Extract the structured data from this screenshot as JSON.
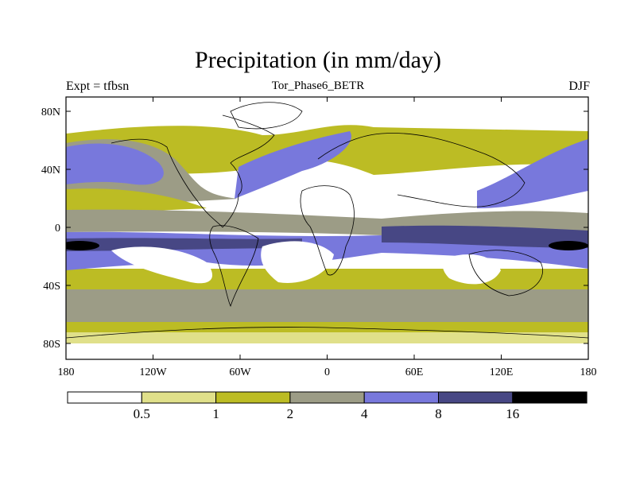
{
  "title": "Precipitation (in mm/day)",
  "subtitle": "Tor_Phase6_BETR",
  "left_label": "Expt = tfbsn",
  "right_label": "DJF",
  "colors": {
    "c0": "#ffffff",
    "c1": "#e0e08a",
    "c2": "#bcbc24",
    "c3": "#9c9c86",
    "c4": "#7878dc",
    "c5": "#474784",
    "c6": "#000000",
    "coast": "#000000"
  },
  "map": {
    "x_ticks": [
      "180",
      "120W",
      "60W",
      "0",
      "60E",
      "120E",
      "180"
    ],
    "y_ticks": [
      "80N",
      "40N",
      "0",
      "40S",
      "80S"
    ]
  },
  "colorbar": {
    "labels": [
      "0.5",
      "1",
      "2",
      "4",
      "8",
      "16"
    ],
    "boxes": [
      "c0",
      "c1",
      "c2",
      "c3",
      "c4",
      "c5",
      "c6"
    ]
  }
}
